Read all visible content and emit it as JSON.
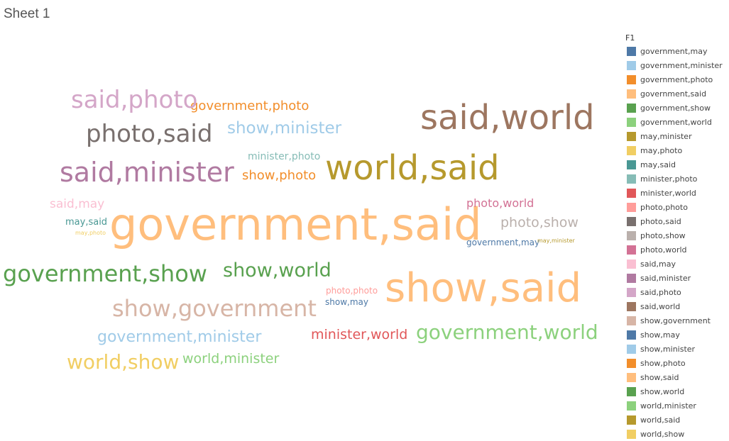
{
  "sheet": {
    "title": "Sheet 1"
  },
  "chart_data": {
    "type": "wordcloud",
    "legend_title": "F1",
    "legend_position": "right",
    "words": [
      {
        "label": "government,may",
        "color": "#4e79a7",
        "size": 1,
        "in_cloud": true
      },
      {
        "label": "government,minister",
        "color": "#a0cbe8",
        "size": 3,
        "in_cloud": true
      },
      {
        "label": "government,photo",
        "color": "#f28e2b",
        "size": 2,
        "in_cloud": true
      },
      {
        "label": "government,said",
        "color": "#ffbe7d",
        "size": 10,
        "in_cloud": true
      },
      {
        "label": "government,show",
        "color": "#59a14f",
        "size": 5,
        "in_cloud": true
      },
      {
        "label": "government,world",
        "color": "#8cd17d",
        "size": 4,
        "in_cloud": true
      },
      {
        "label": "may,minister",
        "color": "#b6992d",
        "size": 1,
        "in_cloud": true
      },
      {
        "label": "may,photo",
        "color": "#f1ce63",
        "size": 1,
        "in_cloud": true
      },
      {
        "label": "may,said",
        "color": "#499894",
        "size": 1,
        "in_cloud": true
      },
      {
        "label": "minister,photo",
        "color": "#86bcb6",
        "size": 1,
        "in_cloud": true
      },
      {
        "label": "minister,world",
        "color": "#e15759",
        "size": 2,
        "in_cloud": true
      },
      {
        "label": "photo,photo",
        "color": "#ff9d9a",
        "size": 1,
        "in_cloud": true
      },
      {
        "label": "photo,said",
        "color": "#79706e",
        "size": 5,
        "in_cloud": true
      },
      {
        "label": "photo,show",
        "color": "#bab0ac",
        "size": 2,
        "in_cloud": true
      },
      {
        "label": "photo,world",
        "color": "#d37295",
        "size": 2,
        "in_cloud": true
      },
      {
        "label": "said,may",
        "color": "#fabfd2",
        "size": 2,
        "in_cloud": true
      },
      {
        "label": "said,minister",
        "color": "#b07aa1",
        "size": 6,
        "in_cloud": true
      },
      {
        "label": "said,photo",
        "color": "#d4a6c8",
        "size": 5,
        "in_cloud": true
      },
      {
        "label": "said,world",
        "color": "#9d7660",
        "size": 8,
        "in_cloud": true
      },
      {
        "label": "show,government",
        "color": "#d7b5a6",
        "size": 5,
        "in_cloud": true
      },
      {
        "label": "show,may",
        "color": "#4e79a7",
        "size": 1,
        "in_cloud": true
      },
      {
        "label": "show,minister",
        "color": "#a0cbe8",
        "size": 3,
        "in_cloud": true
      },
      {
        "label": "show,photo",
        "color": "#f28e2b",
        "size": 2,
        "in_cloud": true
      },
      {
        "label": "show,said",
        "color": "#ffbe7d",
        "size": 9,
        "in_cloud": true
      },
      {
        "label": "show,world",
        "color": "#59a14f",
        "size": 4,
        "in_cloud": true
      },
      {
        "label": "world,minister",
        "color": "#8cd17d",
        "size": 2,
        "in_cloud": true
      },
      {
        "label": "world,said",
        "color": "#b6992d",
        "size": 8,
        "in_cloud": true
      },
      {
        "label": "world,show",
        "color": "#f1ce63",
        "size": 4,
        "in_cloud": true
      }
    ]
  }
}
